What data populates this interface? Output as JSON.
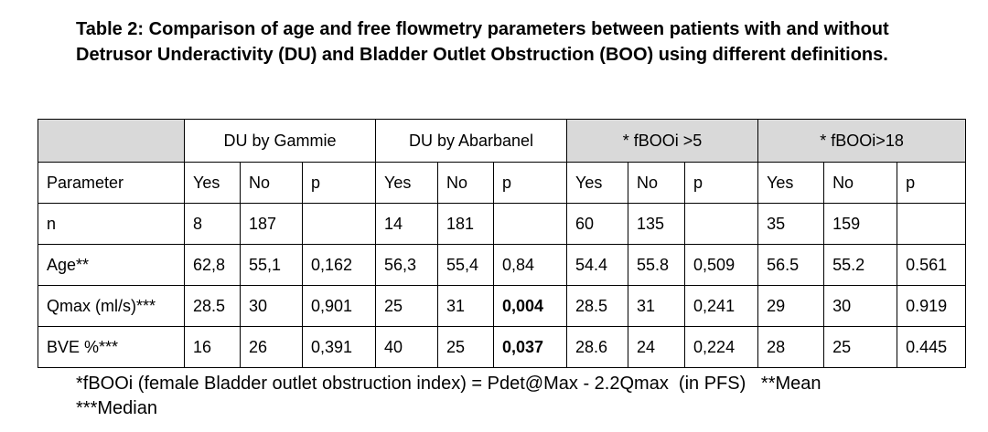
{
  "title": "Table 2: Comparison of age and free flowmetry parameters between patients with and without Detrusor Underactivity (DU) and Bladder Outlet Obstruction (BOO) using different definitions.",
  "groups": [
    "DU by Gammie",
    "DU by Abarbanel",
    "*  fBOOi >5",
    "* fBOOi>18"
  ],
  "columns": [
    "Parameter",
    "Yes",
    "No",
    "p",
    "Yes",
    "No",
    "p",
    "Yes",
    "No",
    "p",
    "Yes",
    "No",
    "p"
  ],
  "rows": [
    [
      "n",
      "8",
      "187",
      "",
      "14",
      "181",
      "",
      "60",
      "135",
      "",
      "35",
      "159",
      ""
    ],
    [
      "Age**",
      "62,8",
      "55,1",
      "0,162",
      "56,3",
      "55,4",
      "0,84",
      "54.4",
      "55.8",
      "0,509",
      "56.5",
      "55.2",
      "0.561"
    ],
    [
      "Qmax (ml/s)***",
      "28.5",
      "30",
      "0,901",
      "25",
      "31",
      "0,004",
      "28.5",
      "31",
      "0,241",
      "29",
      "30",
      "0.919"
    ],
    [
      "BVE %***",
      "16",
      "26",
      "0,391",
      "40",
      "25",
      "0,037",
      "28.6",
      "24",
      "0,224",
      "28",
      "25",
      "0.445"
    ]
  ],
  "footnote": {
    "line1": "*fBOOi (female Bladder outlet obstruction index) = Pdet@Max - 2.2Qmax  (in PFS)   **Mean",
    "line2": "***Median"
  }
}
